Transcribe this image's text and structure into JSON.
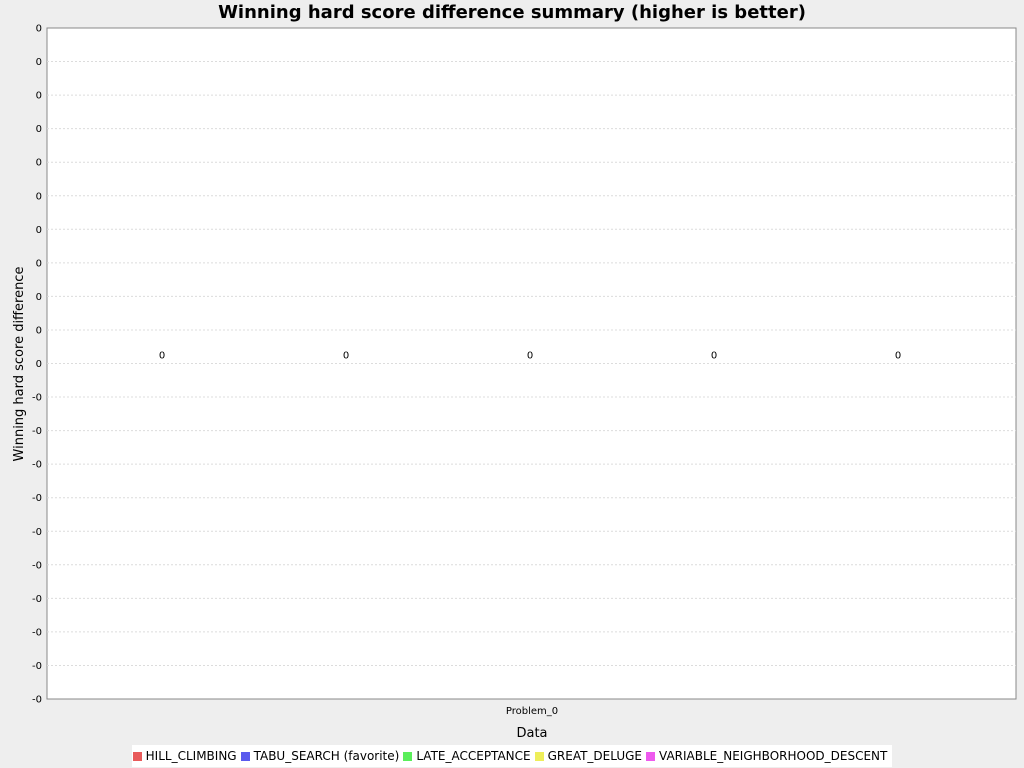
{
  "chart_data": {
    "type": "bar",
    "title": "Winning hard score difference summary (higher is better)",
    "xlabel": "Data",
    "ylabel": "Winning hard score difference",
    "categories": [
      "Problem_0"
    ],
    "series": [
      {
        "name": "HILL_CLIMBING",
        "values": [
          0
        ],
        "color": "#e85a5a"
      },
      {
        "name": "TABU_SEARCH (favorite)",
        "values": [
          0
        ],
        "color": "#5a5aee"
      },
      {
        "name": "LATE_ACCEPTANCE",
        "values": [
          0
        ],
        "color": "#5aee5a"
      },
      {
        "name": "GREAT_DELUGE",
        "values": [
          0
        ],
        "color": "#eeee5a"
      },
      {
        "name": "VARIABLE_NEIGHBORHOOD_DESCENT",
        "values": [
          0
        ],
        "color": "#ee5aee"
      }
    ],
    "data_labels": [
      "0",
      "0",
      "0",
      "0",
      "0"
    ],
    "y_tick_labels": [
      "0",
      "0",
      "0",
      "0",
      "0",
      "0",
      "0",
      "0",
      "0",
      "0",
      "0",
      "-0",
      "-0",
      "-0",
      "-0",
      "-0",
      "-0",
      "-0",
      "-0",
      "-0",
      "-0"
    ],
    "grid": true,
    "legend": "bottom"
  }
}
